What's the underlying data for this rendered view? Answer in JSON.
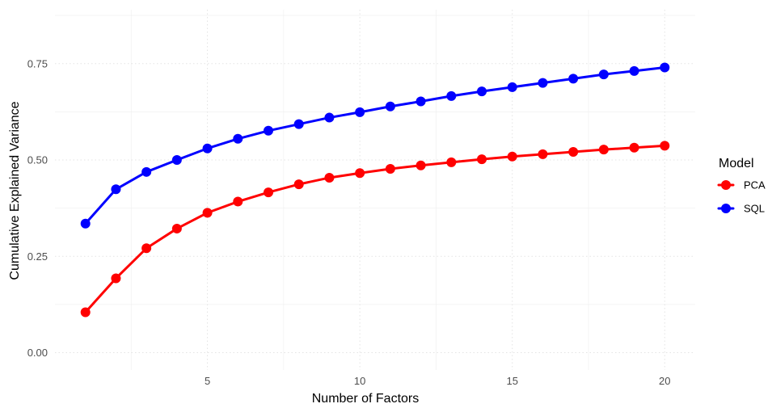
{
  "chart_data": {
    "type": "line",
    "title": "",
    "xlabel": "Number of Factors",
    "ylabel": "Cumulative Explained Variance",
    "x": [
      1,
      2,
      3,
      4,
      5,
      6,
      7,
      8,
      9,
      10,
      11,
      12,
      13,
      14,
      15,
      16,
      17,
      18,
      19,
      20
    ],
    "xlim": [
      0.0,
      21.0
    ],
    "ylim": [
      -0.045,
      0.89
    ],
    "x_ticks": [
      5,
      10,
      15,
      20
    ],
    "x_tick_labels": [
      "5",
      "10",
      "15",
      "20"
    ],
    "x_minor_ticks": [
      2.5,
      7.5,
      12.5,
      17.5
    ],
    "y_ticks": [
      0.0,
      0.25,
      0.5,
      0.75
    ],
    "y_tick_labels": [
      "0.00",
      "0.25",
      "0.50",
      "0.75"
    ],
    "y_minor_ticks": [
      0.125,
      0.375,
      0.625,
      0.875
    ],
    "grid": true,
    "legend": {
      "title": "Model",
      "position": "right"
    },
    "series": [
      {
        "name": "PCA",
        "color": "#ff0000",
        "values": [
          0.105,
          0.193,
          0.271,
          0.322,
          0.363,
          0.392,
          0.416,
          0.437,
          0.454,
          0.466,
          0.477,
          0.486,
          0.494,
          0.502,
          0.509,
          0.515,
          0.521,
          0.527,
          0.532,
          0.537
        ]
      },
      {
        "name": "SQL",
        "color": "#0000ff",
        "values": [
          0.335,
          0.424,
          0.469,
          0.5,
          0.53,
          0.555,
          0.576,
          0.593,
          0.61,
          0.624,
          0.639,
          0.652,
          0.666,
          0.678,
          0.689,
          0.7,
          0.711,
          0.722,
          0.731,
          0.74
        ]
      }
    ]
  }
}
